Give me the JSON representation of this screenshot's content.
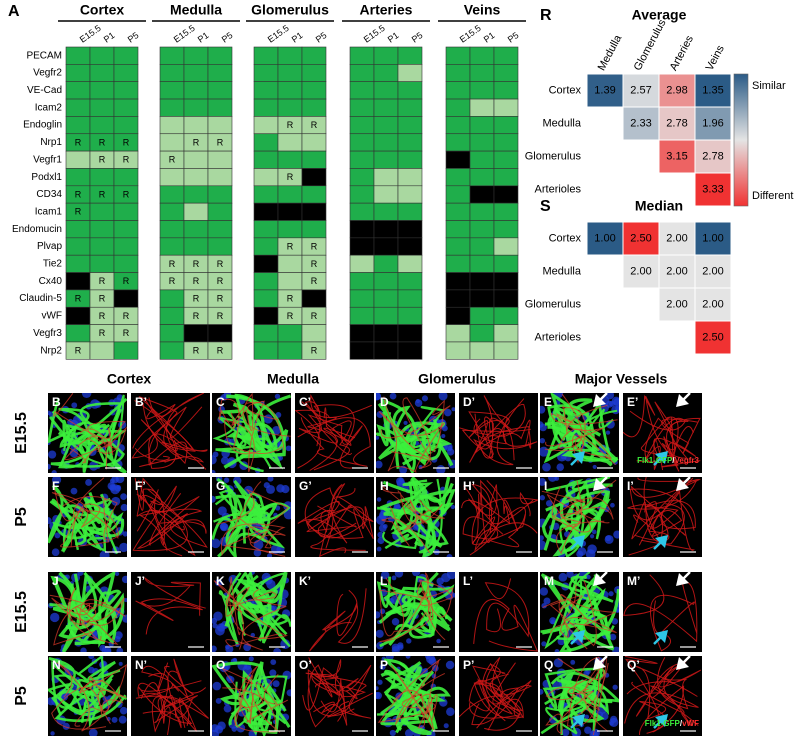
{
  "panel_a": {
    "label": "A",
    "genes": [
      "PECAM",
      "Vegfr2",
      "VE-Cad",
      "Icam2",
      "Endoglin",
      "Nrp1",
      "Vegfr1",
      "Podxl1",
      "CD34",
      "Icam1",
      "Endomucin",
      "Plvap",
      "Tie2",
      "Cx40",
      "Claudin-5",
      "vWF",
      "Vegfr3",
      "Nrp2"
    ],
    "groups": [
      {
        "name": "Cortex",
        "stages": [
          "E15.5",
          "P1",
          "P5"
        ],
        "cells": [
          [
            "g",
            "g",
            "g"
          ],
          [
            "g",
            "g",
            "g"
          ],
          [
            "g",
            "g",
            "g"
          ],
          [
            "g",
            "g",
            "g"
          ],
          [
            "g",
            "g",
            "g"
          ],
          [
            {
              "fill": "g",
              "label": "R"
            },
            {
              "fill": "g",
              "label": "R"
            },
            {
              "fill": "g",
              "label": "R"
            }
          ],
          [
            "l",
            {
              "fill": "l",
              "label": "R"
            },
            {
              "fill": "l",
              "label": "R"
            }
          ],
          [
            "g",
            "g",
            "g"
          ],
          [
            {
              "fill": "g",
              "label": "R"
            },
            {
              "fill": "g",
              "label": "R"
            },
            {
              "fill": "g",
              "label": "R"
            }
          ],
          [
            {
              "fill": "g",
              "label": "R"
            },
            "g",
            "g"
          ],
          [
            "g",
            "g",
            "g"
          ],
          [
            "g",
            "g",
            "g"
          ],
          [
            "g",
            "g",
            "g"
          ],
          [
            "k",
            {
              "fill": "l",
              "label": "R"
            },
            {
              "fill": "g",
              "label": "R"
            }
          ],
          [
            {
              "fill": "g",
              "label": "R"
            },
            {
              "fill": "l",
              "label": "R"
            },
            "k"
          ],
          [
            "k",
            {
              "fill": "l",
              "label": "R"
            },
            {
              "fill": "l",
              "label": "R"
            }
          ],
          [
            "g",
            {
              "fill": "l",
              "label": "R"
            },
            {
              "fill": "l",
              "label": "R"
            }
          ],
          [
            {
              "fill": "l",
              "label": "R"
            },
            "l",
            "g"
          ]
        ]
      },
      {
        "name": "Medulla",
        "stages": [
          "E15.5",
          "P1",
          "P5"
        ],
        "cells": [
          [
            "g",
            "g",
            "g"
          ],
          [
            "g",
            "g",
            "g"
          ],
          [
            "g",
            "g",
            "g"
          ],
          [
            "g",
            "g",
            "g"
          ],
          [
            "l",
            "l",
            "l"
          ],
          [
            "l",
            {
              "fill": "l",
              "label": "R"
            },
            {
              "fill": "l",
              "label": "R"
            }
          ],
          [
            {
              "fill": "l",
              "label": "R"
            },
            "l",
            "l"
          ],
          [
            "l",
            "l",
            "l"
          ],
          [
            "g",
            "g",
            "g"
          ],
          [
            "g",
            "l",
            "g"
          ],
          [
            "g",
            "g",
            "g"
          ],
          [
            "g",
            "g",
            "g"
          ],
          [
            {
              "fill": "l",
              "label": "R"
            },
            {
              "fill": "l",
              "label": "R"
            },
            {
              "fill": "l",
              "label": "R"
            }
          ],
          [
            {
              "fill": "l",
              "label": "R"
            },
            {
              "fill": "l",
              "label": "R"
            },
            {
              "fill": "l",
              "label": "R"
            }
          ],
          [
            "g",
            {
              "fill": "l",
              "label": "R"
            },
            {
              "fill": "l",
              "label": "R"
            }
          ],
          [
            "g",
            {
              "fill": "l",
              "label": "R"
            },
            {
              "fill": "l",
              "label": "R"
            }
          ],
          [
            "g",
            "k",
            "k"
          ],
          [
            "g",
            {
              "fill": "l",
              "label": "R"
            },
            {
              "fill": "l",
              "label": "R"
            }
          ]
        ]
      },
      {
        "name": "Glomerulus",
        "stages": [
          "E15.5",
          "P1",
          "P5"
        ],
        "cells": [
          [
            "g",
            "g",
            "g"
          ],
          [
            "g",
            "g",
            "g"
          ],
          [
            "g",
            "g",
            "g"
          ],
          [
            "g",
            "g",
            "g"
          ],
          [
            "l",
            {
              "fill": "l",
              "label": "R"
            },
            {
              "fill": "l",
              "label": "R"
            }
          ],
          [
            "g",
            "l",
            "l"
          ],
          [
            "g",
            "g",
            "g"
          ],
          [
            "l",
            {
              "fill": "l",
              "label": "R"
            },
            "k"
          ],
          [
            "g",
            "g",
            "g"
          ],
          [
            "k",
            "k",
            "k"
          ],
          [
            "g",
            "g",
            "g"
          ],
          [
            "g",
            {
              "fill": "l",
              "label": "R"
            },
            {
              "fill": "l",
              "label": "R"
            }
          ],
          [
            "k",
            "l",
            {
              "fill": "l",
              "label": "R"
            }
          ],
          [
            "g",
            "l",
            {
              "fill": "l",
              "label": "R"
            }
          ],
          [
            "g",
            {
              "fill": "l",
              "label": "R"
            },
            "k"
          ],
          [
            "k",
            {
              "fill": "l",
              "label": "R"
            },
            {
              "fill": "l",
              "label": "R"
            }
          ],
          [
            "g",
            "g",
            "l"
          ],
          [
            "g",
            "g",
            {
              "fill": "l",
              "label": "R"
            }
          ]
        ]
      },
      {
        "name": "Arteries",
        "stages": [
          "E15.5",
          "P1",
          "P5"
        ],
        "cells": [
          [
            "g",
            "g",
            "g"
          ],
          [
            "g",
            "g",
            "l"
          ],
          [
            "g",
            "g",
            "g"
          ],
          [
            "g",
            "g",
            "g"
          ],
          [
            "g",
            "g",
            "g"
          ],
          [
            "g",
            "g",
            "g"
          ],
          [
            "g",
            "g",
            "g"
          ],
          [
            "g",
            "l",
            "l"
          ],
          [
            "g",
            "l",
            "l"
          ],
          [
            "g",
            "g",
            "g"
          ],
          [
            "k",
            "k",
            "k"
          ],
          [
            "k",
            "k",
            "k"
          ],
          [
            "l",
            "g",
            "l"
          ],
          [
            "g",
            "g",
            "g"
          ],
          [
            "g",
            "g",
            "g"
          ],
          [
            "g",
            "g",
            "g"
          ],
          [
            "k",
            "k",
            "k"
          ],
          [
            "k",
            "k",
            "k"
          ]
        ]
      },
      {
        "name": "Veins",
        "stages": [
          "E15.5",
          "P1",
          "P5"
        ],
        "cells": [
          [
            "g",
            "g",
            "g"
          ],
          [
            "g",
            "g",
            "g"
          ],
          [
            "g",
            "g",
            "g"
          ],
          [
            "g",
            "l",
            "l"
          ],
          [
            "g",
            "g",
            "g"
          ],
          [
            "g",
            "g",
            "g"
          ],
          [
            "k",
            "g",
            "g"
          ],
          [
            "g",
            "g",
            "g"
          ],
          [
            "g",
            "k",
            "k"
          ],
          [
            "g",
            "g",
            "g"
          ],
          [
            "g",
            "g",
            "g"
          ],
          [
            "g",
            "g",
            "l"
          ],
          [
            "g",
            "g",
            "g"
          ],
          [
            "k",
            "k",
            "k"
          ],
          [
            "k",
            "k",
            "k"
          ],
          [
            "k",
            "g",
            "g"
          ],
          [
            "l",
            "g",
            "l"
          ],
          [
            "l",
            "l",
            "l"
          ]
        ]
      }
    ]
  },
  "similarity": {
    "scale_labels": [
      "Similar",
      "Different"
    ],
    "matrices": [
      {
        "label": "R",
        "title": "Average",
        "columns": [
          "Medulla",
          "Glomerulus",
          "Arteries",
          "Veins"
        ],
        "rows": [
          "Cortex",
          "Medulla",
          "Glomerulus",
          "Arterioles"
        ],
        "values": [
          [
            1.39,
            2.57,
            2.98,
            1.35
          ],
          [
            null,
            2.33,
            2.78,
            1.96
          ],
          [
            null,
            null,
            3.15,
            2.78
          ],
          [
            null,
            null,
            null,
            3.33
          ]
        ]
      },
      {
        "label": "S",
        "title": "Median",
        "rows": [
          "Cortex",
          "Medulla",
          "Glomerulus",
          "Arterioles"
        ],
        "values": [
          [
            1,
            2.5,
            2,
            1
          ],
          [
            null,
            2,
            2,
            2
          ],
          [
            null,
            null,
            2,
            2
          ],
          [
            null,
            null,
            null,
            2.5
          ]
        ],
        "value_labels": [
          [
            "1.00",
            "2.50",
            "2.00",
            "1.00"
          ],
          [
            null,
            "2.00",
            "2.00",
            "2.00"
          ],
          [
            null,
            null,
            "2.00",
            "2.00"
          ],
          [
            null,
            null,
            null,
            "2.50"
          ]
        ]
      }
    ]
  },
  "micrographs": {
    "columns": [
      "Cortex",
      "Medulla",
      "Glomerulus",
      "Major Vessels"
    ],
    "rows": [
      "E15.5",
      "P5",
      "E15.5",
      "P5"
    ],
    "panels": [
      [
        "B",
        "B’",
        "C",
        "C’",
        "D",
        "D’",
        "E",
        "E’"
      ],
      [
        "F",
        "F’",
        "G",
        "G’",
        "H",
        "H’",
        "I",
        "I’"
      ],
      [
        "J",
        "J’",
        "K",
        "K’",
        "L",
        "L’",
        "M",
        "M’"
      ],
      [
        "N",
        "N’",
        "O",
        "O’",
        "P",
        "P’",
        "Q",
        "Q’"
      ]
    ],
    "stain_labels": [
      [
        "Flk1-GFP",
        "/",
        "Vegfr3"
      ],
      [
        "Flk1-GFP",
        "/",
        "vWF"
      ]
    ]
  }
}
